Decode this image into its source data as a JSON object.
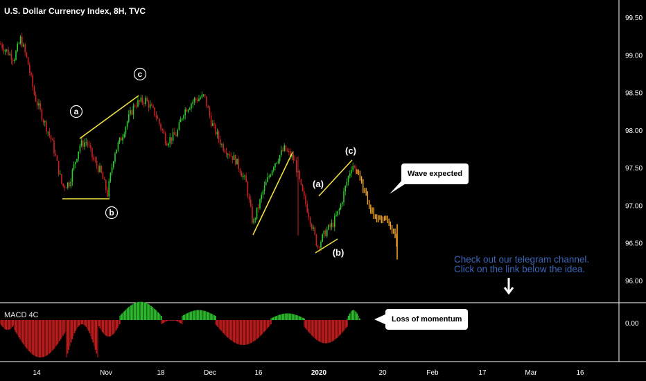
{
  "chart_title": "U.S. Dollar Currency Index, 8H, TVC",
  "macd_label": "MACD 4C",
  "callouts": {
    "wave_expected": "Wave expected",
    "loss_of_momentum": "Loss of momentum"
  },
  "telegram": {
    "line1": "Check out our telegram channel.",
    "line2": "Click on the link below the idea."
  },
  "wave_labels": {
    "first_a": "a",
    "first_b": "b",
    "first_c": "c",
    "second_a": "(a)",
    "second_b": "(b)",
    "second_c": "(c)"
  },
  "colors": {
    "background": "#000000",
    "bullish": "#2ecc2e",
    "bearish": "#cc2222",
    "projection": "#f5a623",
    "trendline": "#f0e040",
    "text": "#ffffff",
    "telegram_text": "#3d66b8",
    "macd_positive_strong": "#2db82d",
    "macd_positive_weak": "#1a6e1a",
    "macd_negative_strong": "#b81c1c",
    "macd_negative_weak": "#6e1010"
  },
  "chart_data": {
    "type": "candlestick",
    "title": "U.S. Dollar Currency Index, 8H, TVC",
    "price_axis_ticks": [
      "99.50",
      "99.00",
      "98.50",
      "98.00",
      "97.50",
      "97.00",
      "96.50",
      "96.00"
    ],
    "price_axis_values": [
      99.5,
      99.0,
      98.5,
      98.0,
      97.5,
      97.0,
      96.5,
      96.0
    ],
    "ylim": [
      95.65,
      99.75
    ],
    "time_axis_ticks": [
      "14",
      "Nov",
      "18",
      "Dec",
      "16",
      "2020",
      "20",
      "Feb",
      "17",
      "Mar",
      "16"
    ],
    "price_path": [
      [
        0,
        99.15
      ],
      [
        10,
        99.05
      ],
      [
        20,
        98.95
      ],
      [
        30,
        99.22
      ],
      [
        40,
        98.9
      ],
      [
        50,
        98.45
      ],
      [
        60,
        98.2
      ],
      [
        75,
        97.85
      ],
      [
        90,
        97.25
      ],
      [
        100,
        97.3
      ],
      [
        115,
        97.8
      ],
      [
        125,
        97.85
      ],
      [
        135,
        97.6
      ],
      [
        145,
        97.45
      ],
      [
        155,
        97.15
      ],
      [
        165,
        97.7
      ],
      [
        175,
        97.9
      ],
      [
        185,
        98.15
      ],
      [
        195,
        98.35
      ],
      [
        210,
        98.4
      ],
      [
        225,
        98.2
      ],
      [
        240,
        97.85
      ],
      [
        255,
        97.95
      ],
      [
        265,
        98.25
      ],
      [
        280,
        98.4
      ],
      [
        295,
        98.45
      ],
      [
        305,
        98.1
      ],
      [
        320,
        97.8
      ],
      [
        340,
        97.6
      ],
      [
        355,
        97.3
      ],
      [
        365,
        96.75
      ],
      [
        380,
        97.2
      ],
      [
        395,
        97.55
      ],
      [
        410,
        97.75
      ],
      [
        425,
        97.6
      ],
      [
        435,
        97.2
      ],
      [
        445,
        96.9
      ],
      [
        458,
        96.45
      ],
      [
        470,
        96.65
      ],
      [
        480,
        96.75
      ],
      [
        490,
        96.95
      ],
      [
        500,
        97.3
      ],
      [
        508,
        97.55
      ],
      [
        515,
        97.45
      ]
    ],
    "projection_path": [
      [
        515,
        97.45
      ],
      [
        525,
        97.2
      ],
      [
        535,
        96.95
      ],
      [
        545,
        96.8
      ],
      [
        555,
        96.85
      ],
      [
        565,
        96.7
      ],
      [
        572,
        96.55
      ],
      [
        573,
        96.3
      ]
    ],
    "macd": {
      "label": "MACD 4C",
      "zero_tick": "0.00",
      "segments": [
        {
          "from": 0,
          "to": 20,
          "values": [
            -0.05,
            -0.12
          ]
        },
        {
          "from": 20,
          "to": 95,
          "values": [
            -0.12,
            -0.45
          ]
        },
        {
          "from": 95,
          "to": 140,
          "values": [
            -0.45,
            -0.05
          ]
        },
        {
          "from": 140,
          "to": 172,
          "values": [
            -0.05,
            -0.2
          ]
        },
        {
          "from": 172,
          "to": 232,
          "values": [
            0.05,
            0.22
          ]
        },
        {
          "from": 232,
          "to": 262,
          "values": [
            -0.05,
            0.0
          ]
        },
        {
          "from": 262,
          "to": 310,
          "values": [
            0.05,
            0.12
          ]
        },
        {
          "from": 310,
          "to": 390,
          "values": [
            -0.05,
            -0.3
          ]
        },
        {
          "from": 390,
          "to": 438,
          "values": [
            0.02,
            0.08
          ]
        },
        {
          "from": 438,
          "to": 500,
          "values": [
            -0.08,
            -0.28
          ]
        },
        {
          "from": 500,
          "to": 518,
          "values": [
            0.02,
            0.12
          ]
        }
      ]
    }
  }
}
